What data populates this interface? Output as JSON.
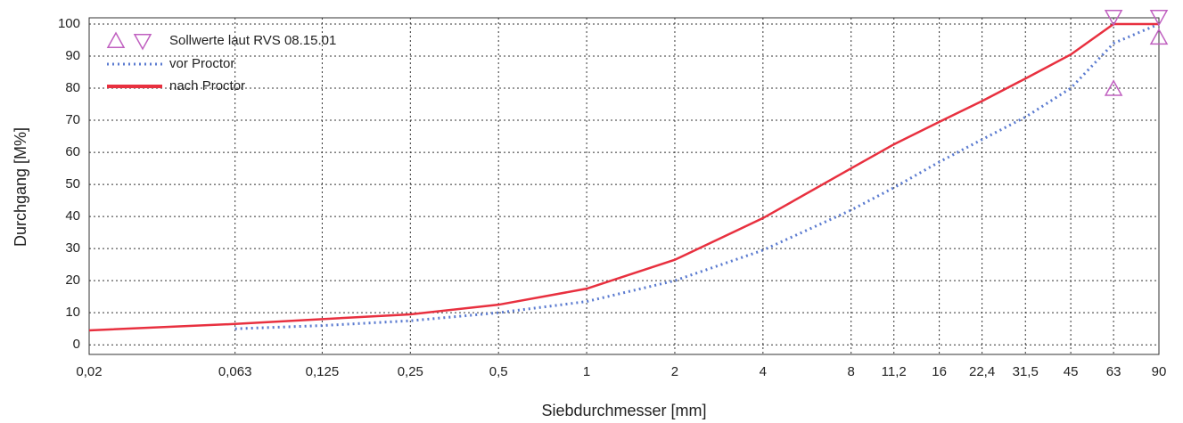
{
  "chart_data": {
    "type": "line",
    "xlabel": "Siebdurchmesser [mm]",
    "ylabel": "Durchgang [M%]",
    "xscale": "log",
    "grid": true,
    "legend": "upper left",
    "x": [
      0.02,
      0.063,
      0.125,
      0.25,
      0.5,
      1,
      2,
      4,
      8,
      11.2,
      16,
      22.4,
      31.5,
      45,
      63,
      90
    ],
    "series": [
      {
        "name": "vor Proctor",
        "color": "#5b7bd0",
        "style": "dotted",
        "values": [
          null,
          5,
          6,
          7.5,
          10,
          13.5,
          20,
          29.5,
          42,
          49,
          57,
          64,
          71,
          80,
          94,
          100
        ]
      },
      {
        "name": "nach Proctor",
        "color": "#e8303f",
        "style": "solid",
        "values": [
          4.5,
          6.5,
          8,
          9.5,
          12.5,
          17.5,
          26.5,
          39.5,
          55,
          62.5,
          69.5,
          76,
          83,
          90.5,
          100,
          100
        ]
      },
      {
        "name": "Sollwerte laut RVS 08.15.01",
        "color": "#c060c0",
        "style": "limits",
        "x": [
          63,
          90
        ],
        "lower": [
          82,
          98
        ],
        "upper": [
          100,
          100
        ]
      }
    ],
    "xlim": [
      0.02,
      90
    ],
    "ylim": [
      -3,
      100
    ],
    "xticks": [
      {
        "value": 0.02,
        "label": "0,02"
      },
      {
        "value": 0.063,
        "label": "0,063"
      },
      {
        "value": 0.125,
        "label": "0,125"
      },
      {
        "value": 0.25,
        "label": "0,25"
      },
      {
        "value": 0.5,
        "label": "0,5"
      },
      1,
      2,
      4,
      8,
      {
        "value": 11.2,
        "label": "11,2"
      },
      16,
      {
        "value": 22.4,
        "label": "22,4"
      },
      {
        "value": 31.5,
        "label": "31,5"
      },
      45,
      63,
      90
    ],
    "yticks": [
      0,
      10,
      20,
      30,
      40,
      50,
      60,
      70,
      80,
      90,
      100
    ]
  }
}
